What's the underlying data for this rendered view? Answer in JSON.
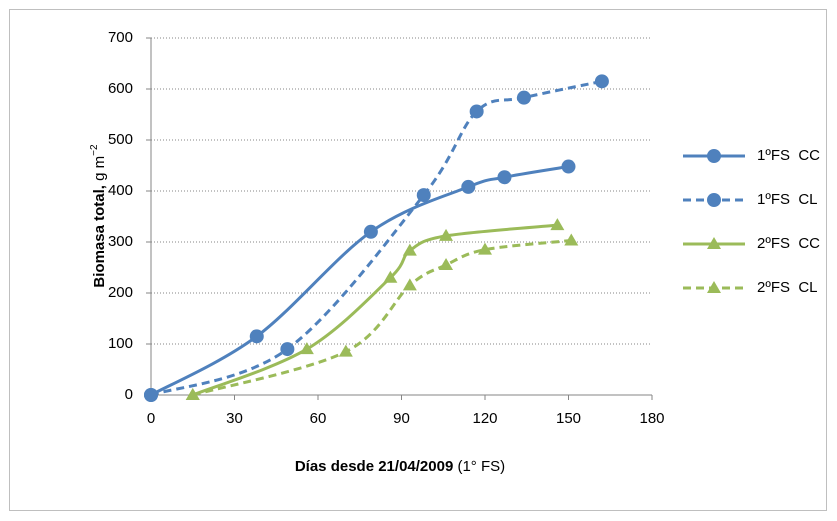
{
  "chart_data": {
    "type": "line",
    "xlabel": [
      "Días desde 21/04/2009",
      "(1° FS)"
    ],
    "ylabel": [
      "Biomasa total,",
      "g m",
      "−2"
    ],
    "xlim": [
      0,
      180
    ],
    "xticks": [
      0,
      30,
      60,
      90,
      120,
      150,
      180
    ],
    "ylim": [
      0,
      700
    ],
    "yticks": [
      0,
      100,
      200,
      300,
      400,
      500,
      600,
      700
    ],
    "grid": true,
    "legend": "right",
    "series": [
      {
        "name": "1ºFS  CC",
        "color": "#4f81bd",
        "marker": "circle",
        "dashed": false,
        "x": [
          0,
          38,
          79,
          114,
          127,
          150
        ],
        "values": [
          0,
          115,
          320,
          408,
          427,
          448
        ]
      },
      {
        "name": "1ºFS  CL",
        "color": "#4f81bd",
        "marker": "circle",
        "dashed": true,
        "x": [
          0,
          49,
          98,
          117,
          134,
          162
        ],
        "values": [
          0,
          90,
          392,
          556,
          583,
          615
        ]
      },
      {
        "name": "2ºFS  CC",
        "color": "#9bbb59",
        "marker": "triangle",
        "dashed": false,
        "x": [
          15,
          56,
          86,
          93,
          106,
          146
        ],
        "values": [
          0,
          90,
          230,
          283,
          312,
          333
        ]
      },
      {
        "name": "2ºFS  CL",
        "color": "#9bbb59",
        "marker": "triangle",
        "dashed": true,
        "x": [
          15,
          70,
          93,
          106,
          120,
          151
        ],
        "values": [
          0,
          85,
          215,
          255,
          285,
          303
        ]
      }
    ]
  }
}
